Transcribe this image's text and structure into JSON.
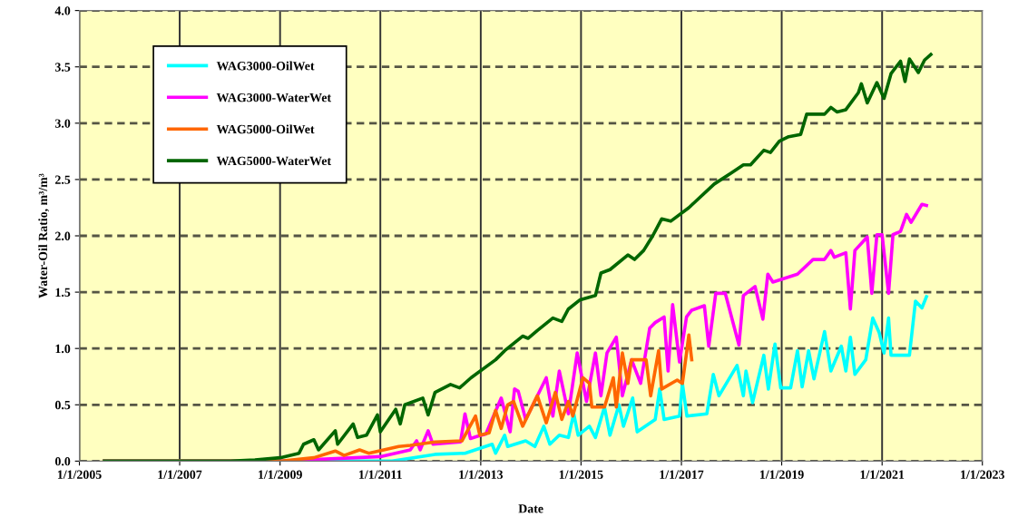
{
  "chart_data": {
    "type": "line",
    "xlabel": "Date",
    "ylabel": "Water-Oil Ratio, m³/m³",
    "xlim": [
      "2005-01-01",
      "2023-01-01"
    ],
    "xticks": [
      {
        "value": "2005-01-01",
        "label": "1/1/2005"
      },
      {
        "value": "2007-01-01",
        "label": "1/1/2007"
      },
      {
        "value": "2009-01-01",
        "label": "1/1/2009"
      },
      {
        "value": "2011-01-01",
        "label": "1/1/2011"
      },
      {
        "value": "2013-01-01",
        "label": "1/1/2013"
      },
      {
        "value": "2015-01-01",
        "label": "1/1/2015"
      },
      {
        "value": "2017-01-01",
        "label": "1/1/2017"
      },
      {
        "value": "2019-01-01",
        "label": "1/1/2019"
      },
      {
        "value": "2021-01-01",
        "label": "1/1/2021"
      },
      {
        "value": "2023-01-01",
        "label": "1/1/2023"
      }
    ],
    "ylim": [
      0,
      4
    ],
    "yticks": [
      {
        "value": 0,
        "label": "0.0"
      },
      {
        "value": 0.5,
        "label": "0.5"
      },
      {
        "value": 1,
        "label": "1.0"
      },
      {
        "value": 1.5,
        "label": "1.5"
      },
      {
        "value": 2,
        "label": "2.0"
      },
      {
        "value": 2.5,
        "label": "2.5"
      },
      {
        "value": 3,
        "label": "3.0"
      },
      {
        "value": 3.5,
        "label": "3.5"
      },
      {
        "value": 4,
        "label": "4.0"
      }
    ],
    "grid": true,
    "legend": "top left",
    "marker": "none",
    "line_style": "solid",
    "series": [
      {
        "name": "WAG3000-OilWet",
        "color": "#00ffff",
        "x": [
          "2005-07-02",
          "2011-03-28",
          "2012-02-03",
          "2012-09-08",
          "2013-03-25",
          "2013-04-19",
          "2013-06-24",
          "2013-07-16",
          "2013-11-24",
          "2014-01-30",
          "2014-04-05",
          "2014-05-19",
          "2014-07-27",
          "2014-10-01",
          "2014-11-09",
          "2014-12-11",
          "2015-03-03",
          "2015-04-16",
          "2015-06-21",
          "2015-07-31",
          "2015-10-04",
          "2015-11-06",
          "2016-01-12",
          "2016-02-14",
          "2016-06-24",
          "2016-07-27",
          "2016-08-28",
          "2016-12-18",
          "2017-01-08",
          "2017-02-10",
          "2017-07-05",
          "2017-08-21",
          "2017-10-01",
          "2018-02-10",
          "2018-03-28",
          "2018-04-16",
          "2018-06-03",
          "2018-08-24",
          "2018-09-26",
          "2018-11-13",
          "2018-12-25",
          "2019-03-07",
          "2019-04-26",
          "2019-05-30",
          "2019-07-16",
          "2019-08-24",
          "2019-11-09",
          "2019-12-25",
          "2020-03-10",
          "2020-04-12",
          "2020-05-15",
          "2020-06-17",
          "2020-09-04",
          "2020-10-25",
          "2020-12-11",
          "2021-01-15",
          "2021-02-17",
          "2021-03-07",
          "2021-05-15",
          "2021-07-19",
          "2021-09-01",
          "2021-10-18",
          "2021-11-20"
        ],
        "values": [
          0,
          0,
          0.06,
          0.07,
          0.15,
          0.07,
          0.23,
          0.13,
          0.18,
          0.13,
          0.31,
          0.15,
          0.23,
          0.21,
          0.42,
          0.23,
          0.31,
          0.21,
          0.48,
          0.23,
          0.5,
          0.31,
          0.56,
          0.26,
          0.37,
          0.64,
          0.37,
          0.4,
          0.69,
          0.4,
          0.42,
          0.77,
          0.58,
          0.85,
          0.58,
          0.8,
          0.52,
          0.94,
          0.64,
          1.04,
          0.65,
          0.65,
          0.98,
          0.66,
          0.98,
          0.73,
          1.15,
          0.8,
          1.02,
          0.8,
          1.1,
          0.77,
          0.9,
          1.27,
          1.14,
          0.96,
          1.27,
          0.94,
          0.94,
          0.94,
          1.42,
          1.36,
          1.46
        ]
      },
      {
        "name": "WAG3000-WaterWet",
        "color": "#ff00ff",
        "x": [
          "2005-07-02",
          "2009-01-01",
          "2010-01-01",
          "2011-01-01",
          "2011-08-07",
          "2011-09-22",
          "2011-10-18",
          "2011-12-15",
          "2012-01-19",
          "2012-08-07",
          "2012-09-08",
          "2012-10-18",
          "2012-12-08",
          "2013-02-07",
          "2013-05-30",
          "2013-08-03",
          "2013-09-04",
          "2013-10-01",
          "2013-11-24",
          "2014-04-23",
          "2014-06-10",
          "2014-07-27",
          "2014-10-01",
          "2014-12-04",
          "2015-02-10",
          "2015-04-16",
          "2015-05-26",
          "2015-07-09",
          "2015-09-15",
          "2015-10-29",
          "2016-01-04",
          "2016-03-10",
          "2016-05-15",
          "2016-06-24",
          "2016-08-28",
          "2016-09-26",
          "2016-10-29",
          "2016-12-18",
          "2017-02-07",
          "2017-03-17",
          "2017-06-17",
          "2017-07-19",
          "2017-09-08",
          "2017-11-16",
          "2018-02-24",
          "2018-03-28",
          "2018-06-21",
          "2018-08-17",
          "2018-09-22",
          "2018-10-29",
          "2019-04-26",
          "2019-08-17",
          "2019-11-09",
          "2019-12-25",
          "2020-01-19",
          "2020-04-12",
          "2020-05-15",
          "2020-06-17",
          "2020-09-15",
          "2020-10-18",
          "2020-11-24",
          "2021-01-01",
          "2021-02-17",
          "2021-03-21",
          "2021-05-15",
          "2021-06-28",
          "2021-07-31",
          "2021-10-18",
          "2021-11-20"
        ],
        "values": [
          0,
          0,
          0.02,
          0.04,
          0.1,
          0.18,
          0.1,
          0.27,
          0.15,
          0.17,
          0.42,
          0.2,
          0.22,
          0.24,
          0.56,
          0.26,
          0.64,
          0.62,
          0.37,
          0.74,
          0.4,
          0.8,
          0.42,
          0.96,
          0.53,
          0.96,
          0.58,
          0.96,
          1.1,
          0.58,
          0.9,
          0.69,
          1.18,
          1.23,
          1.28,
          0.8,
          1.39,
          0.88,
          1.28,
          1.34,
          1.38,
          1.02,
          1.49,
          1.49,
          1.03,
          1.47,
          1.55,
          1.26,
          1.66,
          1.59,
          1.66,
          1.79,
          1.79,
          1.87,
          1.81,
          1.85,
          1.35,
          1.87,
          1.99,
          1.49,
          2.01,
          2.01,
          1.49,
          2.01,
          2.04,
          2.19,
          2.12,
          2.28,
          2.27
        ]
      },
      {
        "name": "WAG5000-OilWet",
        "color": "#ff6600",
        "x": [
          "2005-07-02",
          "2009-01-12",
          "2009-09-04",
          "2010-02-07",
          "2010-04-12",
          "2010-08-03",
          "2010-10-08",
          "2011-05-15",
          "2011-08-07",
          "2012-02-03",
          "2012-08-17",
          "2012-11-24",
          "2012-12-25",
          "2013-03-03",
          "2013-04-19",
          "2013-05-30",
          "2013-07-16",
          "2013-08-28",
          "2013-11-02",
          "2014-02-17",
          "2014-04-23",
          "2014-06-28",
          "2014-08-14",
          "2014-10-01",
          "2014-11-02",
          "2015-01-15",
          "2015-03-03",
          "2015-03-21",
          "2015-06-21",
          "2015-08-24",
          "2015-09-15",
          "2015-10-29",
          "2015-12-08",
          "2016-01-04",
          "2016-03-10",
          "2016-04-19",
          "2016-05-22",
          "2016-07-19",
          "2016-08-10",
          "2016-12-01",
          "2017-01-08",
          "2017-02-07",
          "2017-02-24",
          "2017-03-17"
        ],
        "values": [
          0,
          0,
          0.03,
          0.09,
          0.05,
          0.1,
          0.07,
          0.13,
          0.14,
          0.17,
          0.18,
          0.4,
          0.23,
          0.25,
          0.45,
          0.29,
          0.5,
          0.53,
          0.31,
          0.58,
          0.34,
          0.61,
          0.37,
          0.53,
          0.4,
          0.74,
          0.69,
          0.48,
          0.48,
          0.74,
          0.48,
          0.96,
          0.69,
          0.9,
          0.9,
          0.9,
          0.58,
          0.98,
          0.64,
          0.72,
          0.69,
          0.96,
          1.12,
          0.9
        ]
      },
      {
        "name": "WAG5000-WaterWet",
        "color": "#006600",
        "x": [
          "2005-07-02",
          "2008-01-01",
          "2008-07-02",
          "2009-01-01",
          "2009-05-19",
          "2009-06-21",
          "2009-09-04",
          "2009-10-08",
          "2010-02-07",
          "2010-02-24",
          "2010-06-17",
          "2010-07-19",
          "2010-09-22",
          "2010-12-11",
          "2011-01-01",
          "2011-04-23",
          "2011-05-26",
          "2011-06-28",
          "2011-11-06",
          "2011-12-15",
          "2012-02-03",
          "2012-05-26",
          "2012-07-31",
          "2012-10-22",
          "2013-04-19",
          "2013-06-24",
          "2013-11-02",
          "2013-12-11",
          "2014-02-17",
          "2014-06-10",
          "2014-08-14",
          "2014-10-01",
          "2014-12-22",
          "2015-04-16",
          "2015-05-26",
          "2015-07-31",
          "2015-12-08",
          "2016-01-26",
          "2016-04-01",
          "2016-06-06",
          "2016-08-10",
          "2016-10-15",
          "2017-02-24",
          "2017-08-28",
          "2018-01-01",
          "2018-03-28",
          "2018-05-19",
          "2018-08-24",
          "2018-10-11",
          "2018-12-15",
          "2019-02-21",
          "2019-05-19",
          "2019-07-02",
          "2019-11-09",
          "2019-12-25",
          "2020-02-07",
          "2020-04-12",
          "2020-07-12",
          "2020-08-03",
          "2020-09-15",
          "2020-11-24",
          "2021-01-15",
          "2021-03-07",
          "2021-05-15",
          "2021-06-17",
          "2021-07-19",
          "2021-09-22",
          "2021-11-06",
          "2021-12-22"
        ],
        "values": [
          0,
          0,
          0.01,
          0.03,
          0.07,
          0.15,
          0.19,
          0.1,
          0.27,
          0.15,
          0.33,
          0.21,
          0.23,
          0.41,
          0.26,
          0.46,
          0.33,
          0.5,
          0.56,
          0.41,
          0.61,
          0.68,
          0.65,
          0.74,
          0.9,
          0.98,
          1.11,
          1.09,
          1.16,
          1.27,
          1.24,
          1.35,
          1.43,
          1.47,
          1.67,
          1.7,
          1.83,
          1.79,
          1.87,
          2.0,
          2.15,
          2.13,
          2.25,
          2.46,
          2.56,
          2.63,
          2.63,
          2.76,
          2.74,
          2.84,
          2.88,
          2.9,
          3.08,
          3.08,
          3.14,
          3.1,
          3.12,
          3.27,
          3.35,
          3.18,
          3.36,
          3.22,
          3.44,
          3.55,
          3.37,
          3.57,
          3.45,
          3.56,
          3.61
        ]
      }
    ]
  }
}
